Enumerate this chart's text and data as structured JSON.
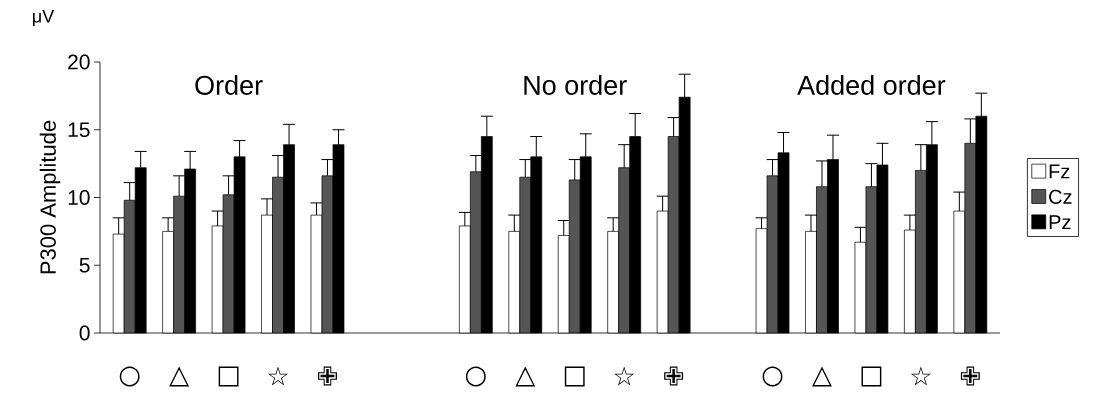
{
  "chart_data": {
    "type": "bar",
    "ylabel": "P300 Amplitude",
    "annotations": [
      "Order",
      "No order",
      "Added order",
      "μV"
    ],
    "categories": [
      "○",
      "△",
      "□",
      "☆",
      "✙",
      null,
      null,
      "○",
      "△",
      "□",
      "☆",
      "✙",
      null,
      "○",
      "△",
      "□",
      "☆",
      "✙"
    ],
    "series": [
      {
        "name": "Fz",
        "color": "#ffffff",
        "values": [
          7.3,
          7.5,
          7.9,
          8.7,
          8.7,
          null,
          null,
          7.9,
          7.5,
          7.2,
          7.5,
          9.0,
          null,
          7.7,
          7.5,
          6.7,
          7.6,
          9.0
        ],
        "errors": [
          [
            7.3,
            8.5
          ],
          [
            7.5,
            8.5
          ],
          [
            7.9,
            9.0
          ],
          [
            8.7,
            9.9
          ],
          [
            8.7,
            9.6
          ],
          null,
          null,
          [
            7.9,
            8.9
          ],
          [
            7.5,
            8.7
          ],
          [
            7.2,
            8.3
          ],
          [
            7.5,
            8.5
          ],
          [
            9.0,
            10.1
          ],
          null,
          [
            7.7,
            8.5
          ],
          [
            7.5,
            8.7
          ],
          [
            6.7,
            7.8
          ],
          [
            7.6,
            8.7
          ],
          [
            9.0,
            10.4
          ]
        ]
      },
      {
        "name": "Cz",
        "color": "#555555",
        "values": [
          9.8,
          10.1,
          10.2,
          11.5,
          11.6,
          null,
          null,
          11.9,
          11.5,
          11.3,
          12.2,
          14.5,
          null,
          11.6,
          10.8,
          10.8,
          12.0,
          14.0
        ],
        "errors": [
          [
            9.8,
            11.1
          ],
          [
            10.1,
            11.6
          ],
          [
            10.2,
            11.6
          ],
          [
            11.5,
            13.1
          ],
          [
            11.6,
            12.8
          ],
          null,
          null,
          [
            11.9,
            13.1
          ],
          [
            11.5,
            12.8
          ],
          [
            11.3,
            12.8
          ],
          [
            12.2,
            13.9
          ],
          [
            14.5,
            15.9
          ],
          null,
          [
            11.6,
            12.8
          ],
          [
            10.8,
            12.7
          ],
          [
            10.8,
            12.5
          ],
          [
            12.0,
            13.9
          ],
          [
            14.0,
            15.8
          ]
        ]
      },
      {
        "name": "Pz",
        "color": "#000000",
        "values": [
          12.2,
          12.1,
          13.0,
          13.9,
          13.9,
          null,
          null,
          14.5,
          13.0,
          13.0,
          14.5,
          17.4,
          null,
          13.3,
          12.8,
          12.4,
          13.9,
          16.0
        ],
        "errors": [
          [
            12.2,
            13.4
          ],
          [
            12.1,
            13.4
          ],
          [
            13.0,
            14.2
          ],
          [
            13.9,
            15.4
          ],
          [
            13.9,
            15.0
          ],
          null,
          null,
          [
            14.5,
            16.0
          ],
          [
            13.0,
            14.5
          ],
          [
            13.0,
            14.7
          ],
          [
            14.5,
            16.2
          ],
          [
            17.4,
            19.1
          ],
          null,
          [
            13.3,
            14.8
          ],
          [
            12.8,
            14.6
          ],
          [
            12.4,
            14.0
          ],
          [
            13.9,
            15.6
          ],
          [
            16.0,
            17.7
          ]
        ]
      }
    ],
    "ylim": [
      0,
      20
    ],
    "yticks": [
      0,
      5,
      10,
      15,
      20
    ],
    "legend": "right"
  }
}
